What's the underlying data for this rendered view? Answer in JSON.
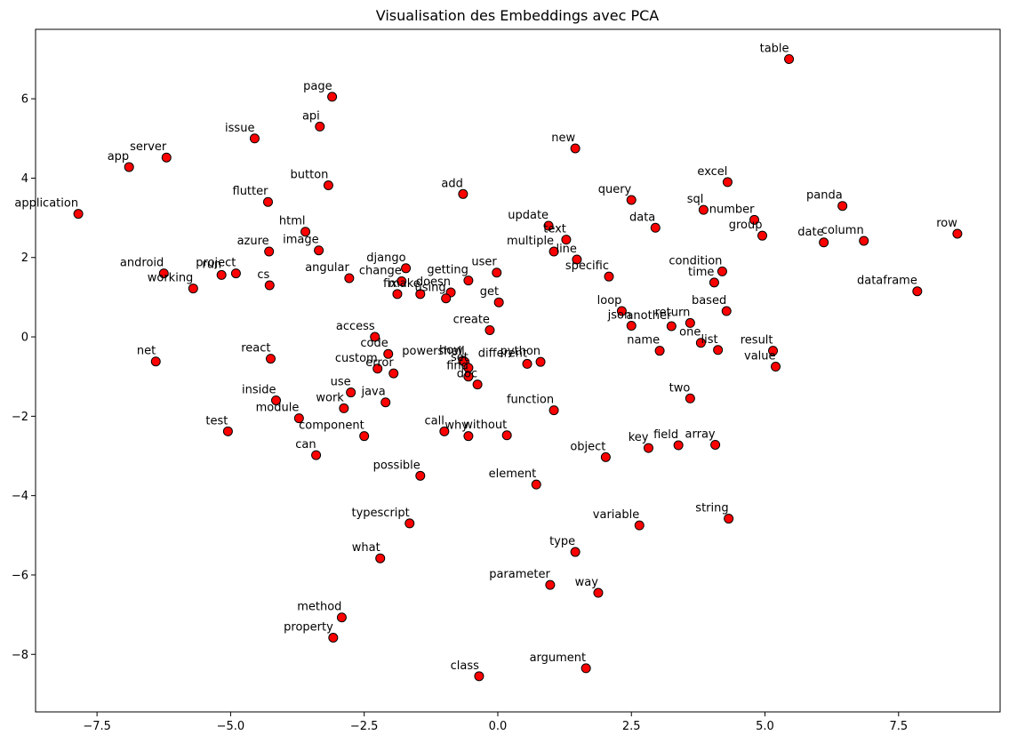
{
  "chart_data": {
    "type": "scatter",
    "title": "Visualisation des Embeddings avec PCA",
    "xlabel": "",
    "ylabel": "",
    "xlim": [
      -8.65,
      9.4
    ],
    "ylim": [
      -9.45,
      7.75
    ],
    "xticks": [
      -7.5,
      -5.0,
      -2.5,
      0.0,
      2.5,
      5.0,
      7.5
    ],
    "xtick_labels": [
      "−7.5",
      "−5.0",
      "−2.5",
      "0.0",
      "2.5",
      "5.0",
      "7.5"
    ],
    "yticks": [
      -8,
      -6,
      -4,
      -2,
      0,
      2,
      4,
      6
    ],
    "ytick_labels": [
      "−8",
      "−6",
      "−4",
      "−2",
      "0",
      "2",
      "4",
      "6"
    ],
    "grid": false,
    "marker_color": "#ff0000",
    "marker_edge": "#000000",
    "points": [
      {
        "label": "table",
        "x": 5.45,
        "y": 7.0
      },
      {
        "label": "page",
        "x": -3.1,
        "y": 6.05
      },
      {
        "label": "api",
        "x": -3.33,
        "y": 5.3
      },
      {
        "label": "issue",
        "x": -4.55,
        "y": 5.0
      },
      {
        "label": "new",
        "x": 1.45,
        "y": 4.75
      },
      {
        "label": "server",
        "x": -6.2,
        "y": 4.52
      },
      {
        "label": "app",
        "x": -6.9,
        "y": 4.28
      },
      {
        "label": "excel",
        "x": 4.3,
        "y": 3.9
      },
      {
        "label": "button",
        "x": -3.17,
        "y": 3.82
      },
      {
        "label": "add",
        "x": -0.65,
        "y": 3.6
      },
      {
        "label": "query",
        "x": 2.5,
        "y": 3.45
      },
      {
        "label": "flutter",
        "x": -4.3,
        "y": 3.4
      },
      {
        "label": "panda",
        "x": 6.45,
        "y": 3.3
      },
      {
        "label": "sql",
        "x": 3.85,
        "y": 3.2
      },
      {
        "label": "application",
        "x": -7.85,
        "y": 3.1
      },
      {
        "label": "number",
        "x": 4.8,
        "y": 2.95
      },
      {
        "label": "update",
        "x": 0.95,
        "y": 2.8
      },
      {
        "label": "data",
        "x": 2.95,
        "y": 2.75
      },
      {
        "label": "html",
        "x": -3.6,
        "y": 2.65
      },
      {
        "label": "row",
        "x": 8.6,
        "y": 2.6
      },
      {
        "label": "group",
        "x": 4.95,
        "y": 2.55
      },
      {
        "label": "text",
        "x": 1.28,
        "y": 2.45
      },
      {
        "label": "column",
        "x": 6.85,
        "y": 2.42
      },
      {
        "label": "date",
        "x": 6.1,
        "y": 2.38
      },
      {
        "label": "image",
        "x": -3.35,
        "y": 2.18
      },
      {
        "label": "multiple",
        "x": 1.05,
        "y": 2.15
      },
      {
        "label": "azure",
        "x": -4.28,
        "y": 2.15
      },
      {
        "label": "line",
        "x": 1.48,
        "y": 1.95
      },
      {
        "label": "django",
        "x": -1.72,
        "y": 1.73
      },
      {
        "label": "condition",
        "x": 4.2,
        "y": 1.65
      },
      {
        "label": "user",
        "x": -0.02,
        "y": 1.62
      },
      {
        "label": "android",
        "x": -6.25,
        "y": 1.6
      },
      {
        "label": "project",
        "x": -4.9,
        "y": 1.6
      },
      {
        "label": "run",
        "x": -5.17,
        "y": 1.56
      },
      {
        "label": "specific",
        "x": 2.08,
        "y": 1.52
      },
      {
        "label": "angular",
        "x": -2.78,
        "y": 1.48
      },
      {
        "label": "getting",
        "x": -0.55,
        "y": 1.42
      },
      {
        "label": "change",
        "x": -1.8,
        "y": 1.4
      },
      {
        "label": "time",
        "x": 4.05,
        "y": 1.37
      },
      {
        "label": "cs",
        "x": -4.27,
        "y": 1.3
      },
      {
        "label": "working",
        "x": -5.7,
        "y": 1.22
      },
      {
        "label": "dataframe",
        "x": 7.85,
        "y": 1.15
      },
      {
        "label": "doesn",
        "x": -0.88,
        "y": 1.12
      },
      {
        "label": "fix",
        "x": -1.88,
        "y": 1.08
      },
      {
        "label": "make",
        "x": -1.45,
        "y": 1.08
      },
      {
        "label": "using",
        "x": -0.97,
        "y": 0.97
      },
      {
        "label": "get",
        "x": 0.02,
        "y": 0.87
      },
      {
        "label": "based",
        "x": 4.28,
        "y": 0.65
      },
      {
        "label": "loop",
        "x": 2.32,
        "y": 0.65
      },
      {
        "label": "return",
        "x": 3.6,
        "y": 0.35
      },
      {
        "label": "json",
        "x": 2.5,
        "y": 0.28
      },
      {
        "label": "another",
        "x": 3.25,
        "y": 0.27
      },
      {
        "label": "create",
        "x": -0.15,
        "y": 0.17
      },
      {
        "label": "access",
        "x": -2.3,
        "y": 0.0
      },
      {
        "label": "one",
        "x": 3.8,
        "y": -0.15
      },
      {
        "label": "list",
        "x": 4.12,
        "y": -0.33
      },
      {
        "label": "result",
        "x": 5.15,
        "y": -0.35
      },
      {
        "label": "name",
        "x": 3.03,
        "y": -0.35
      },
      {
        "label": "code",
        "x": -2.05,
        "y": -0.43
      },
      {
        "label": "net",
        "x": -6.4,
        "y": -0.62
      },
      {
        "label": "react",
        "x": -4.25,
        "y": -0.55
      },
      {
        "label": "how",
        "x": -0.65,
        "y": -0.6
      },
      {
        "label": "python",
        "x": 0.8,
        "y": -0.63
      },
      {
        "label": "powershell",
        "x": -0.62,
        "y": -0.63
      },
      {
        "label": "different",
        "x": 0.55,
        "y": -0.68
      },
      {
        "label": "value",
        "x": 5.2,
        "y": -0.75
      },
      {
        "label": "set",
        "x": -0.55,
        "y": -0.78
      },
      {
        "label": "custom",
        "x": -2.25,
        "y": -0.8
      },
      {
        "label": "error",
        "x": -1.95,
        "y": -0.92
      },
      {
        "label": "find",
        "x": -0.55,
        "y": -1.0
      },
      {
        "label": "doc",
        "x": -0.38,
        "y": -1.2
      },
      {
        "label": "use",
        "x": -2.75,
        "y": -1.4
      },
      {
        "label": "two",
        "x": 3.6,
        "y": -1.55
      },
      {
        "label": "inside",
        "x": -4.15,
        "y": -1.6
      },
      {
        "label": "java",
        "x": -2.1,
        "y": -1.65
      },
      {
        "label": "work",
        "x": -2.88,
        "y": -1.8
      },
      {
        "label": "function",
        "x": 1.05,
        "y": -1.85
      },
      {
        "label": "module",
        "x": -3.72,
        "y": -2.05
      },
      {
        "label": "test",
        "x": -5.05,
        "y": -2.38
      },
      {
        "label": "call",
        "x": -1.0,
        "y": -2.38
      },
      {
        "label": "without",
        "x": 0.17,
        "y": -2.48
      },
      {
        "label": "component",
        "x": -2.5,
        "y": -2.5
      },
      {
        "label": "why",
        "x": -0.55,
        "y": -2.5
      },
      {
        "label": "field",
        "x": 3.38,
        "y": -2.73
      },
      {
        "label": "array",
        "x": 4.07,
        "y": -2.72
      },
      {
        "label": "key",
        "x": 2.82,
        "y": -2.8
      },
      {
        "label": "can",
        "x": -3.4,
        "y": -2.98
      },
      {
        "label": "object",
        "x": 2.02,
        "y": -3.03
      },
      {
        "label": "possible",
        "x": -1.45,
        "y": -3.5
      },
      {
        "label": "element",
        "x": 0.72,
        "y": -3.72
      },
      {
        "label": "string",
        "x": 4.32,
        "y": -4.58
      },
      {
        "label": "typescript",
        "x": -1.65,
        "y": -4.7
      },
      {
        "label": "variable",
        "x": 2.65,
        "y": -4.75
      },
      {
        "label": "type",
        "x": 1.45,
        "y": -5.42
      },
      {
        "label": "what",
        "x": -2.2,
        "y": -5.58
      },
      {
        "label": "parameter",
        "x": 0.98,
        "y": -6.25
      },
      {
        "label": "way",
        "x": 1.88,
        "y": -6.45
      },
      {
        "label": "method",
        "x": -2.92,
        "y": -7.07
      },
      {
        "label": "property",
        "x": -3.08,
        "y": -7.58
      },
      {
        "label": "argument",
        "x": 1.65,
        "y": -8.35
      },
      {
        "label": "class",
        "x": -0.35,
        "y": -8.55
      }
    ]
  }
}
